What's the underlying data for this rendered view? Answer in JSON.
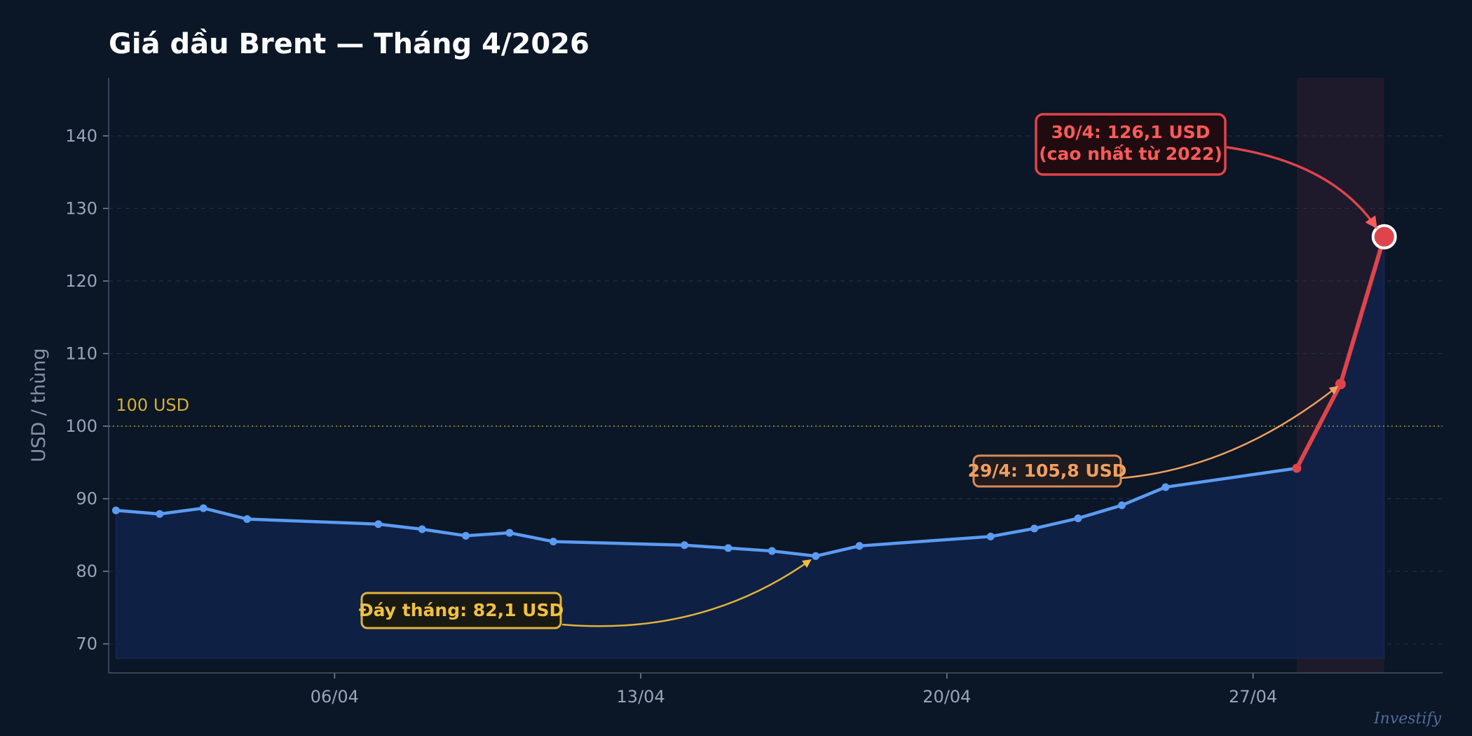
{
  "chart_data": {
    "type": "line",
    "title": "Giá dầu Brent — Tháng 4/2026",
    "ylabel": "USD / thùng",
    "xlabel": "",
    "ylim": [
      66,
      148
    ],
    "xlim": [
      "2026-03-31T20:00",
      "2026-05-01T08:00"
    ],
    "yticks": [
      70,
      80,
      90,
      100,
      110,
      120,
      130,
      140
    ],
    "xticks": [
      {
        "date": "2026-04-06",
        "label": "06/04"
      },
      {
        "date": "2026-04-13",
        "label": "13/04"
      },
      {
        "date": "2026-04-20",
        "label": "20/04"
      },
      {
        "date": "2026-04-27",
        "label": "27/04"
      }
    ],
    "grid": true,
    "series": [
      {
        "color": "#5b9cf2",
        "points": [
          {
            "x": "2026-04-01",
            "y": 88.4
          },
          {
            "x": "2026-04-02",
            "y": 87.9
          },
          {
            "x": "2026-04-03",
            "y": 88.7
          },
          {
            "x": "2026-04-04",
            "y": 87.2
          },
          {
            "x": "2026-04-07",
            "y": 86.5
          },
          {
            "x": "2026-04-08",
            "y": 85.8
          },
          {
            "x": "2026-04-09",
            "y": 84.9
          },
          {
            "x": "2026-04-10",
            "y": 85.3
          },
          {
            "x": "2026-04-11",
            "y": 84.1
          },
          {
            "x": "2026-04-14",
            "y": 83.6
          },
          {
            "x": "2026-04-15",
            "y": 83.2
          },
          {
            "x": "2026-04-16",
            "y": 82.8
          },
          {
            "x": "2026-04-17",
            "y": 82.1
          },
          {
            "x": "2026-04-18",
            "y": 83.5
          },
          {
            "x": "2026-04-21",
            "y": 84.8
          },
          {
            "x": "2026-04-22",
            "y": 85.9
          },
          {
            "x": "2026-04-23",
            "y": 87.3
          },
          {
            "x": "2026-04-24",
            "y": 89.1
          },
          {
            "x": "2026-04-25",
            "y": 91.6
          },
          {
            "x": "2026-04-28",
            "y": 94.2
          }
        ]
      },
      {
        "color": "#e0444b",
        "points": [
          {
            "x": "2026-04-28",
            "y": 94.2
          },
          {
            "x": "2026-04-29",
            "y": 105.8
          },
          {
            "x": "2026-04-30",
            "y": 126.1
          }
        ]
      }
    ],
    "highlight_range": {
      "from": "2026-04-28",
      "to": "2026-04-30"
    },
    "reference_line": {
      "y": 100,
      "label": "100 USD",
      "color": "#c9a227"
    },
    "annotations": [
      {
        "text": [
          "Đáy tháng: 82,1 USD"
        ],
        "x": "2026-04-17",
        "y": 82.1,
        "color": "#f0c040",
        "placement": "below-left"
      },
      {
        "text": [
          "29/4: 105,8 USD"
        ],
        "x": "2026-04-29",
        "y": 105.8,
        "color": "#f0a060",
        "placement": "left"
      },
      {
        "text": [
          "30/4: 126,1 USD",
          "(cao nhất từ 2022)"
        ],
        "x": "2026-04-30",
        "y": 126.1,
        "color": "#ff5a5a",
        "placement": "upper-left"
      }
    ],
    "watermark": "Investify",
    "colors": {
      "background": "#0b1626",
      "grid": "#1f3049",
      "line": "#5b9cf2",
      "spike": "#e0444b",
      "area": "#10224a",
      "axis_text": "#9aa6b8"
    }
  }
}
